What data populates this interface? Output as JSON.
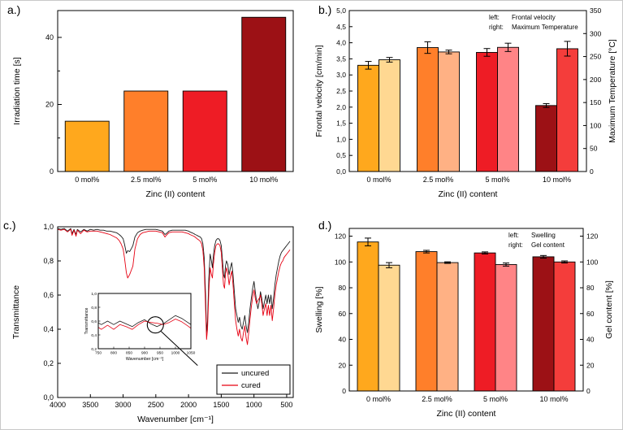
{
  "panel_labels": [
    "a.)",
    "b.)",
    "c.)",
    "d.)"
  ],
  "chart_data": [
    {
      "panel": "a.)",
      "type": "bar",
      "categories": [
        "0 mol%",
        "2.5 mol%",
        "5 mol%",
        "10 mol%"
      ],
      "values": [
        15,
        24,
        24,
        46
      ],
      "bar_colors": [
        "#ffa81d",
        "#ff7f2a",
        "#ee1c25",
        "#9c1115"
      ],
      "xlabel": "Zinc (II) content",
      "ylabel": "Irradiation time [s]",
      "ylim": [
        0,
        48
      ],
      "yticks": [
        {
          "value": 0,
          "label": "0"
        },
        {
          "value": 20,
          "label": "20"
        },
        {
          "value": 40,
          "label": "40"
        }
      ],
      "minor_yticks": [
        10,
        30
      ]
    },
    {
      "panel": "b.)",
      "type": "grouped-bar-dual-axis",
      "categories": [
        "0 mol%",
        "2.5 mol%",
        "5 mol%",
        "10 mol%"
      ],
      "series": [
        {
          "name": "Frontal velocity",
          "axis": "left",
          "values": [
            3.3,
            3.85,
            3.7,
            2.05
          ],
          "errors": [
            0.12,
            0.18,
            0.12,
            0.06
          ],
          "colors": [
            "#ffa81d",
            "#ff7f2a",
            "#ee1c25",
            "#9c1115"
          ]
        },
        {
          "name": "Maximum Temperature",
          "axis": "right",
          "values": [
            243,
            260,
            270,
            267
          ],
          "errors": [
            5,
            4,
            9,
            16
          ],
          "colors": [
            "#ffd892",
            "#ffb184",
            "#ff8486",
            "#f43d3b"
          ]
        }
      ],
      "legend": [
        {
          "prefix": "left:",
          "label": "Frontal velocity"
        },
        {
          "prefix": "right:",
          "label": "Maximum Temperature"
        }
      ],
      "xlabel": "Zinc (II) content",
      "ylabel_left": "Frontal velocity [cm/min]",
      "ylabel_right": "Maximum Temperature [°C]",
      "ylim_left": [
        0,
        5
      ],
      "ylim_right": [
        0,
        350
      ],
      "yticks_left": [
        {
          "value": 0,
          "label": "0,0"
        },
        {
          "value": 0.5,
          "label": "0,5"
        },
        {
          "value": 1,
          "label": "1,0"
        },
        {
          "value": 1.5,
          "label": "1,5"
        },
        {
          "value": 2,
          "label": "2,0"
        },
        {
          "value": 2.5,
          "label": "2,5"
        },
        {
          "value": 3,
          "label": "3,0"
        },
        {
          "value": 3.5,
          "label": "3,5"
        },
        {
          "value": 4,
          "label": "4,0"
        },
        {
          "value": 4.5,
          "label": "4,5"
        },
        {
          "value": 5,
          "label": "5,0"
        }
      ],
      "yticks_right": [
        {
          "value": 0,
          "label": "0"
        },
        {
          "value": 50,
          "label": "50"
        },
        {
          "value": 100,
          "label": "100"
        },
        {
          "value": 150,
          "label": "150"
        },
        {
          "value": 200,
          "label": "200"
        },
        {
          "value": 250,
          "label": "250"
        },
        {
          "value": 300,
          "label": "300"
        },
        {
          "value": 350,
          "label": "350"
        }
      ]
    },
    {
      "panel": "c.)",
      "type": "line",
      "xlabel": "Wavenumber [cm⁻¹]",
      "ylabel": "Transmittance",
      "xlim": [
        4000,
        400
      ],
      "x_reversed": true,
      "ylim": [
        0,
        1.0
      ],
      "xticks": [
        4000,
        3500,
        3000,
        2500,
        2000,
        1500,
        1000,
        500
      ],
      "yticks": [
        {
          "value": 1.0,
          "label": "1,0"
        },
        {
          "value": 0.8,
          "label": "0,8"
        },
        {
          "value": 0.6,
          "label": "0,6"
        },
        {
          "value": 0.4,
          "label": "0,4"
        },
        {
          "value": 0.2,
          "label": "0,2"
        },
        {
          "value": 0.0,
          "label": "0,0"
        }
      ],
      "x": [
        4000,
        3950,
        3900,
        3850,
        3800,
        3780,
        3750,
        3720,
        3700,
        3650,
        3600,
        3550,
        3500,
        3450,
        3400,
        3350,
        3300,
        3250,
        3200,
        3150,
        3100,
        3060,
        3030,
        3000,
        2980,
        2950,
        2930,
        2900,
        2870,
        2850,
        2820,
        2780,
        2740,
        2700,
        2650,
        2600,
        2550,
        2500,
        2450,
        2400,
        2360,
        2340,
        2300,
        2250,
        2200,
        2150,
        2100,
        2050,
        2000,
        1980,
        1950,
        1920,
        1900,
        1870,
        1850,
        1820,
        1800,
        1780,
        1760,
        1740,
        1725,
        1710,
        1690,
        1670,
        1650,
        1635,
        1620,
        1600,
        1580,
        1560,
        1540,
        1520,
        1500,
        1480,
        1465,
        1450,
        1435,
        1420,
        1400,
        1380,
        1360,
        1340,
        1320,
        1300,
        1280,
        1260,
        1240,
        1220,
        1200,
        1180,
        1160,
        1140,
        1120,
        1100,
        1080,
        1060,
        1040,
        1020,
        1000,
        980,
        960,
        940,
        920,
        900,
        880,
        860,
        840,
        820,
        800,
        780,
        760,
        740,
        720,
        700,
        680,
        660,
        640,
        620,
        600,
        580,
        560,
        540,
        520,
        500,
        480,
        460,
        450
      ],
      "series": [
        {
          "name": "uncured",
          "color": "#1a1a1a",
          "y": [
            0.99,
            0.985,
            0.99,
            0.975,
            0.99,
            0.96,
            0.985,
            0.955,
            0.985,
            0.97,
            0.985,
            0.975,
            0.985,
            0.98,
            0.985,
            0.98,
            0.98,
            0.975,
            0.975,
            0.97,
            0.965,
            0.955,
            0.945,
            0.93,
            0.9,
            0.845,
            0.86,
            0.855,
            0.875,
            0.89,
            0.94,
            0.965,
            0.975,
            0.98,
            0.985,
            0.985,
            0.985,
            0.985,
            0.98,
            0.975,
            0.955,
            0.96,
            0.975,
            0.98,
            0.98,
            0.98,
            0.98,
            0.98,
            0.975,
            0.97,
            0.965,
            0.96,
            0.955,
            0.95,
            0.945,
            0.94,
            0.93,
            0.9,
            0.82,
            0.6,
            0.38,
            0.45,
            0.7,
            0.84,
            0.8,
            0.76,
            0.83,
            0.89,
            0.92,
            0.93,
            0.93,
            0.92,
            0.89,
            0.8,
            0.72,
            0.7,
            0.77,
            0.8,
            0.78,
            0.72,
            0.76,
            0.79,
            0.72,
            0.62,
            0.52,
            0.48,
            0.44,
            0.47,
            0.42,
            0.4,
            0.44,
            0.48,
            0.42,
            0.38,
            0.44,
            0.52,
            0.58,
            0.64,
            0.68,
            0.62,
            0.56,
            0.52,
            0.56,
            0.62,
            0.58,
            0.52,
            0.56,
            0.6,
            0.55,
            0.6,
            0.55,
            0.6,
            0.52,
            0.58,
            0.66,
            0.72,
            0.76,
            0.8,
            0.83,
            0.85,
            0.86,
            0.87,
            0.88,
            0.89,
            0.9,
            0.91,
            0.915
          ]
        },
        {
          "name": "cured",
          "color": "#e60012",
          "y": [
            0.985,
            0.98,
            0.985,
            0.97,
            0.985,
            0.95,
            0.98,
            0.945,
            0.98,
            0.96,
            0.98,
            0.97,
            0.975,
            0.975,
            0.975,
            0.97,
            0.965,
            0.96,
            0.955,
            0.945,
            0.935,
            0.92,
            0.9,
            0.87,
            0.82,
            0.73,
            0.7,
            0.72,
            0.75,
            0.77,
            0.87,
            0.93,
            0.955,
            0.965,
            0.97,
            0.975,
            0.975,
            0.975,
            0.97,
            0.965,
            0.94,
            0.95,
            0.965,
            0.97,
            0.97,
            0.97,
            0.97,
            0.965,
            0.96,
            0.955,
            0.95,
            0.945,
            0.94,
            0.93,
            0.925,
            0.915,
            0.9,
            0.86,
            0.76,
            0.52,
            0.34,
            0.4,
            0.62,
            0.76,
            0.72,
            0.7,
            0.78,
            0.85,
            0.89,
            0.9,
            0.9,
            0.89,
            0.85,
            0.74,
            0.66,
            0.64,
            0.72,
            0.76,
            0.73,
            0.66,
            0.71,
            0.74,
            0.66,
            0.55,
            0.45,
            0.4,
            0.36,
            0.4,
            0.35,
            0.33,
            0.38,
            0.42,
            0.35,
            0.31,
            0.38,
            0.46,
            0.53,
            0.59,
            0.63,
            0.58,
            0.55,
            0.57,
            0.58,
            0.6,
            0.55,
            0.48,
            0.52,
            0.55,
            0.48,
            0.54,
            0.48,
            0.54,
            0.45,
            0.52,
            0.6,
            0.66,
            0.7,
            0.74,
            0.77,
            0.79,
            0.8,
            0.82,
            0.83,
            0.84,
            0.85,
            0.86,
            0.865
          ]
        }
      ],
      "inset": {
        "xlabel": "Wavenumber [cm⁻¹]",
        "ylabel": "Transmittance",
        "xlim": [
          750,
          1050
        ],
        "ylim": [
          0.2,
          1.0
        ],
        "xticks": [
          750,
          800,
          850,
          900,
          950,
          1000,
          1050
        ],
        "yticks": [
          {
            "value": 1.0,
            "label": "1,0"
          },
          {
            "value": 0.8,
            "label": "0,8"
          },
          {
            "value": 0.6,
            "label": "0,6"
          },
          {
            "value": 0.4,
            "label": "0,4"
          },
          {
            "value": 0.2,
            "label": "0,2"
          }
        ],
        "circle_at": {
          "x": 935,
          "y": 0.545
        }
      }
    },
    {
      "panel": "d.)",
      "type": "grouped-bar-dual-axis",
      "categories": [
        "0 mol%",
        "2.5 mol%",
        "5 mol%",
        "10 mol%"
      ],
      "series": [
        {
          "name": "Swelling",
          "axis": "left",
          "values": [
            115.5,
            108,
            107,
            104
          ],
          "errors": [
            3,
            1,
            0.8,
            1
          ],
          "colors": [
            "#ffa81d",
            "#ff7f2a",
            "#ee1c25",
            "#9c1115"
          ]
        },
        {
          "name": "Gel content",
          "axis": "right",
          "values": [
            97.5,
            99.5,
            98,
            100
          ],
          "errors": [
            2,
            0.6,
            1.2,
            0.8
          ],
          "colors": [
            "#ffd892",
            "#ffb184",
            "#ff8486",
            "#f43d3b"
          ]
        }
      ],
      "legend": [
        {
          "prefix": "left:",
          "label": "Swelling"
        },
        {
          "prefix": "right:",
          "label": "Gel content"
        }
      ],
      "xlabel": "Zinc (II) content",
      "ylabel_left": "Swelling [%]",
      "ylabel_right": "Gel content [%]",
      "ylim_left": [
        0,
        126
      ],
      "ylim_right": [
        0,
        126
      ],
      "yticks_left": [
        {
          "value": 0,
          "label": "0"
        },
        {
          "value": 20,
          "label": "20"
        },
        {
          "value": 40,
          "label": "40"
        },
        {
          "value": 60,
          "label": "60"
        },
        {
          "value": 80,
          "label": "80"
        },
        {
          "value": 100,
          "label": "100"
        },
        {
          "value": 120,
          "label": "120"
        }
      ],
      "yticks_right": [
        {
          "value": 0,
          "label": "0"
        },
        {
          "value": 20,
          "label": "20"
        },
        {
          "value": 40,
          "label": "40"
        },
        {
          "value": 60,
          "label": "60"
        },
        {
          "value": 80,
          "label": "80"
        },
        {
          "value": 100,
          "label": "100"
        },
        {
          "value": 120,
          "label": "120"
        }
      ]
    }
  ]
}
